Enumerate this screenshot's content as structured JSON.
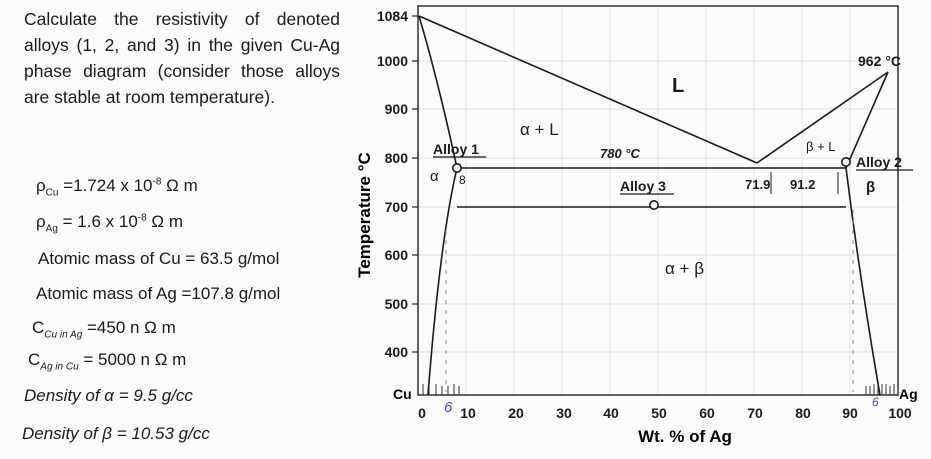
{
  "question": "Calculate the resistivity of denoted alloys (1, 2, and 3) in the given Cu-Ag phase diagram (consider those alloys are stable at room temperature).",
  "properties": {
    "rho_cu": {
      "symbol": "ρ",
      "sub": "Cu",
      "value": " =1.724 x 10",
      "exp": "-8",
      "unit": " Ω m"
    },
    "rho_ag": {
      "symbol": "ρ",
      "sub": "Ag",
      "value": " = 1.6 x 10",
      "exp": "-8",
      "unit": " Ω m"
    },
    "mass_cu": "Atomic mass of Cu = 63.5 g/mol",
    "mass_ag": "Atomic mass of Ag =107.8 g/mol",
    "c_cu_in_ag": {
      "symbol": "C",
      "sub": "Cu in Ag",
      "value": " =450 n Ω m"
    },
    "c_ag_in_cu": {
      "symbol": "C",
      "sub": "Ag in Cu",
      "value": " = 5000 n Ω m"
    },
    "density_alpha": "Density of α = 9.5 g/cc",
    "density_beta": "Density of β = 10.53 g/cc"
  },
  "diagram": {
    "y_axis_label": "Temperature °C",
    "x_axis_label": "Wt. % of Ag",
    "y_ticks": [
      "1084",
      "1000",
      "900",
      "800",
      "700",
      "600",
      "500",
      "400"
    ],
    "x_ticks": [
      "0",
      "10",
      "20",
      "30",
      "40",
      "50",
      "60",
      "70",
      "80",
      "90",
      "100"
    ],
    "left_end": "Cu",
    "right_end": "Ag",
    "labels": {
      "liquid": "L",
      "alpha_liquid": "α + L",
      "beta_liquid": "β + L",
      "alpha": "α",
      "beta": "β",
      "alpha_beta": "α + β",
      "eutectic_temp": "780 °C",
      "ag_melting": "962 °C",
      "eutectic_comp": "71.9",
      "beta_solvus_comp": "91.2",
      "alpha_solvus_comp": "8",
      "alloy1": "Alloy 1",
      "alloy2": "Alloy 2",
      "alloy3": "Alloy 3",
      "hand_6_left": "6",
      "hand_6_right": "6"
    }
  }
}
